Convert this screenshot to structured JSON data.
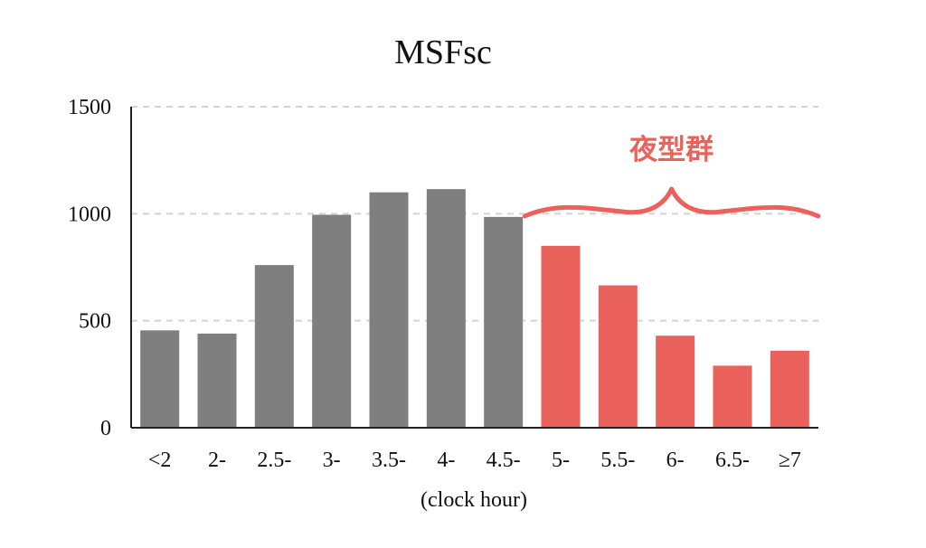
{
  "chart_data": {
    "type": "bar",
    "title": "MSFsc",
    "xlabel": "(clock hour)",
    "ylabel": "",
    "ylim": [
      0,
      1500
    ],
    "yticks": [
      0,
      500,
      1000,
      1500
    ],
    "grid": true,
    "categories": [
      "<2",
      "2-",
      "2.5-",
      "3-",
      "3.5-",
      "4-",
      "4.5-",
      "5-",
      "5.5-",
      "6-",
      "6.5-",
      "≥7"
    ],
    "values": [
      455,
      440,
      760,
      995,
      1100,
      1115,
      985,
      850,
      665,
      430,
      290,
      360
    ],
    "bar_colors": [
      "#7f7f7f",
      "#7f7f7f",
      "#7f7f7f",
      "#7f7f7f",
      "#7f7f7f",
      "#7f7f7f",
      "#7f7f7f",
      "#eb615b",
      "#eb615b",
      "#eb615b",
      "#eb615b",
      "#eb615b"
    ],
    "annotation": {
      "text": "夜型群",
      "color": "#eb615b",
      "first_category": "5-",
      "last_category": "≥7"
    }
  }
}
